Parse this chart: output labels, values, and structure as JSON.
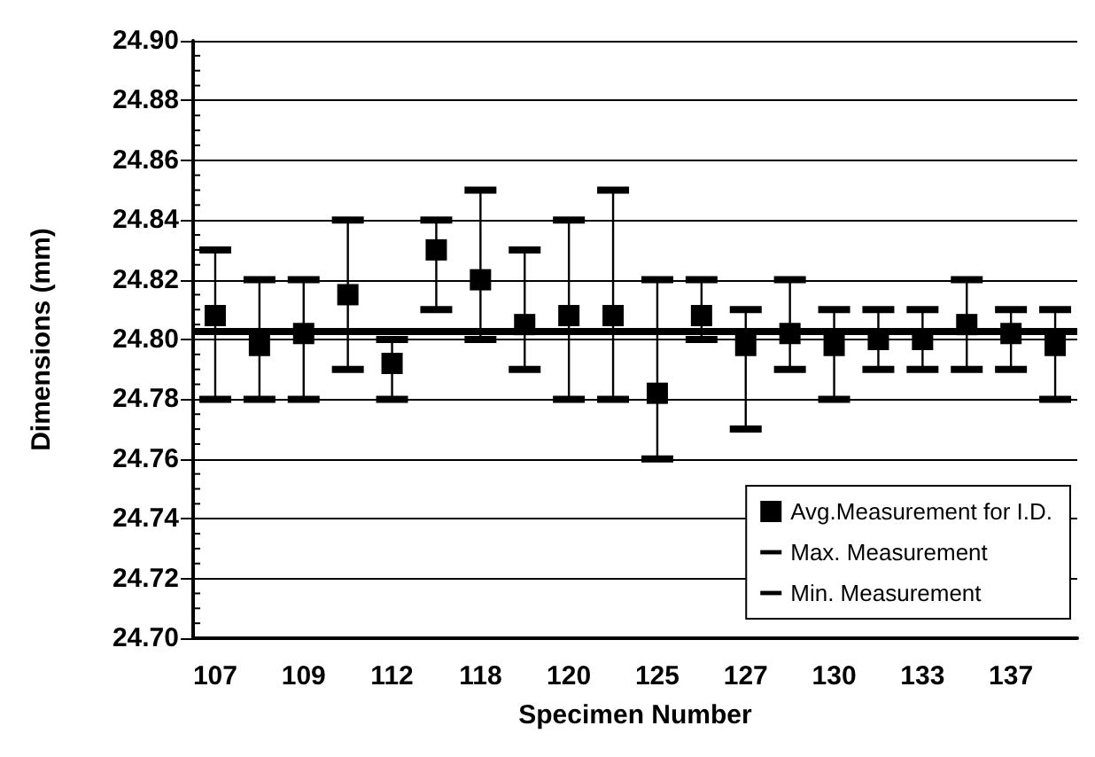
{
  "chart_data": {
    "type": "scatter",
    "xlabel": "Specimen Number",
    "ylabel": "Dimensions (mm)",
    "categories": [
      "107",
      null,
      "109",
      null,
      "112",
      null,
      "118",
      null,
      "120",
      null,
      "125",
      null,
      "127",
      null,
      "130",
      null,
      "133",
      null,
      "137",
      null
    ],
    "series": [
      {
        "name": "Avg.Measurement for I.D.",
        "color": "#000000",
        "marker": "square",
        "values": [
          24.808,
          24.798,
          24.802,
          24.815,
          24.792,
          24.83,
          24.82,
          24.805,
          24.808,
          24.808,
          24.782,
          24.808,
          24.798,
          24.802,
          24.798,
          24.8,
          24.8,
          24.805,
          24.802,
          24.798
        ],
        "errors": [
          [
            24.78,
            24.83
          ],
          [
            24.78,
            24.82
          ],
          [
            24.78,
            24.82
          ],
          [
            24.79,
            24.84
          ],
          [
            24.78,
            24.8
          ],
          [
            24.81,
            24.84
          ],
          [
            24.8,
            24.85
          ],
          [
            24.79,
            24.83
          ],
          [
            24.78,
            24.84
          ],
          [
            24.78,
            24.85
          ],
          [
            24.76,
            24.82
          ],
          [
            24.8,
            24.82
          ],
          [
            24.77,
            24.81
          ],
          [
            24.79,
            24.82
          ],
          [
            24.78,
            24.81
          ],
          [
            24.79,
            24.81
          ],
          [
            24.79,
            24.81
          ],
          [
            24.79,
            24.82
          ],
          [
            24.79,
            24.81
          ],
          [
            24.78,
            24.81
          ]
        ]
      },
      {
        "name": "Max. Measurement",
        "color": "#000000",
        "marker": "none",
        "values": [
          null,
          null,
          null,
          null,
          null,
          null,
          null,
          null,
          null,
          null,
          null,
          null,
          null,
          null,
          null,
          null,
          null,
          null,
          null,
          null
        ]
      },
      {
        "name": "Min. Measurement",
        "color": "#000000",
        "marker": "none",
        "values": [
          null,
          null,
          null,
          null,
          null,
          null,
          null,
          null,
          null,
          null,
          null,
          null,
          null,
          null,
          null,
          null,
          null,
          null,
          null,
          null
        ]
      }
    ],
    "ref_lines": [
      {
        "axis": "y",
        "value": 24.803,
        "label": null,
        "color": "#000000"
      }
    ],
    "ylim": [
      24.7,
      24.9
    ],
    "yticks": [
      {
        "value": 24.7,
        "label": "24.70"
      },
      {
        "value": 24.72,
        "label": "24.72"
      },
      {
        "value": 24.74,
        "label": "24.74"
      },
      {
        "value": 24.76,
        "label": "24.76"
      },
      {
        "value": 24.78,
        "label": "24.78"
      },
      {
        "value": 24.8,
        "label": "24.80"
      },
      {
        "value": 24.82,
        "label": "24.82"
      },
      {
        "value": 24.84,
        "label": "24.84"
      },
      {
        "value": 24.86,
        "label": "24.86"
      },
      {
        "value": 24.88,
        "label": "24.88"
      },
      {
        "value": 24.9,
        "label": "24.90"
      }
    ],
    "grid": "y",
    "legend": "bottom right"
  }
}
